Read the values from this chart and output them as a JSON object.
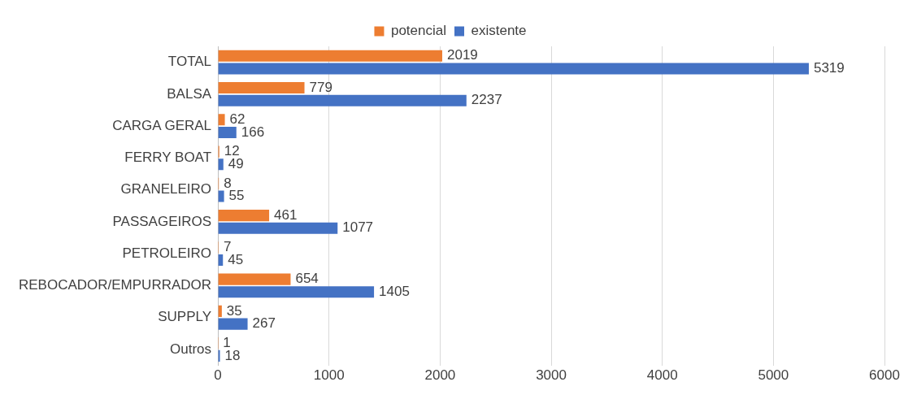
{
  "chart_data": {
    "type": "bar",
    "orientation": "horizontal",
    "categories": [
      "TOTAL",
      "BALSA",
      "CARGA GERAL",
      "FERRY BOAT",
      "GRANELEIRO",
      "PASSAGEIROS",
      "PETROLEIRO",
      "REBOCADOR/EMPURRADOR",
      "SUPPLY",
      "Outros"
    ],
    "series": [
      {
        "name": "potencial",
        "color": "#ed7d31",
        "values": [
          2019,
          779,
          62,
          12,
          8,
          461,
          7,
          654,
          35,
          1
        ]
      },
      {
        "name": "existente",
        "color": "#4472c4",
        "values": [
          5319,
          2237,
          166,
          49,
          55,
          1077,
          45,
          1405,
          267,
          18
        ]
      }
    ],
    "xlim": [
      0,
      6000
    ],
    "xticks": [
      0,
      1000,
      2000,
      3000,
      4000,
      5000,
      6000
    ],
    "grid": "x",
    "legend": "top",
    "data_labels": true
  }
}
